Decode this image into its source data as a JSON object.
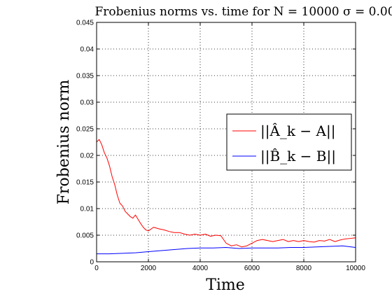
{
  "chart_data": {
    "type": "line",
    "title": "Frobenius norms vs. time for N = 10000 σ = 0.00",
    "xlabel": "Time",
    "ylabel": "Frobenius norm",
    "xlim": [
      0,
      10000
    ],
    "ylim": [
      0,
      0.045
    ],
    "x_ticks": [
      0,
      2000,
      4000,
      6000,
      8000,
      10000
    ],
    "x_tick_labels": [
      "0",
      "2000",
      "4000",
      "6000",
      "8000",
      "10000"
    ],
    "y_ticks": [
      0,
      0.005,
      0.01,
      0.015,
      0.02,
      0.025,
      0.03,
      0.035,
      0.04,
      0.045
    ],
    "y_tick_labels": [
      "0",
      "0.005",
      "0.01",
      "0.015",
      "0.02",
      "0.025",
      "0.03",
      "0.035",
      "0.04",
      "0.045"
    ],
    "grid": true,
    "legend_position": "right",
    "series": [
      {
        "name": "||Â_k − A||",
        "color": "#ff0000",
        "x": [
          0,
          100,
          200,
          300,
          400,
          500,
          600,
          700,
          800,
          900,
          1000,
          1100,
          1200,
          1300,
          1400,
          1500,
          1600,
          1700,
          1800,
          1900,
          2000,
          2200,
          2400,
          2600,
          2800,
          3000,
          3200,
          3400,
          3600,
          3800,
          4000,
          4200,
          4400,
          4600,
          4800,
          5000,
          5200,
          5400,
          5600,
          5800,
          6000,
          6200,
          6400,
          6600,
          6800,
          7000,
          7200,
          7400,
          7600,
          7800,
          8000,
          8200,
          8400,
          8600,
          8800,
          9000,
          9200,
          9400,
          9600,
          9800,
          10000
        ],
        "y": [
          0.0225,
          0.023,
          0.022,
          0.0205,
          0.0195,
          0.018,
          0.016,
          0.0145,
          0.0125,
          0.011,
          0.0105,
          0.0095,
          0.009,
          0.0085,
          0.0082,
          0.0088,
          0.008,
          0.0072,
          0.0065,
          0.006,
          0.0058,
          0.0065,
          0.0062,
          0.006,
          0.0057,
          0.0055,
          0.0055,
          0.0052,
          0.005,
          0.0052,
          0.005,
          0.0052,
          0.0048,
          0.005,
          0.0049,
          0.0035,
          0.003,
          0.0032,
          0.0028,
          0.003,
          0.0035,
          0.004,
          0.0042,
          0.004,
          0.0038,
          0.004,
          0.0042,
          0.0038,
          0.004,
          0.0038,
          0.004,
          0.0038,
          0.0037,
          0.004,
          0.0039,
          0.0042,
          0.0038,
          0.0041,
          0.0043,
          0.0044,
          0.0045
        ]
      },
      {
        "name": "||B̂_k − B||",
        "color": "#0000ff",
        "x": [
          0,
          500,
          1000,
          1500,
          2000,
          2500,
          3000,
          3500,
          4000,
          4500,
          5000,
          5500,
          6000,
          6500,
          7000,
          7500,
          8000,
          8500,
          9000,
          9500,
          10000
        ],
        "y": [
          0.0015,
          0.0015,
          0.0016,
          0.0017,
          0.0019,
          0.0021,
          0.0023,
          0.0025,
          0.0026,
          0.0026,
          0.0027,
          0.0025,
          0.0026,
          0.0026,
          0.0026,
          0.0027,
          0.0027,
          0.0028,
          0.0029,
          0.003,
          0.0027
        ]
      }
    ]
  }
}
